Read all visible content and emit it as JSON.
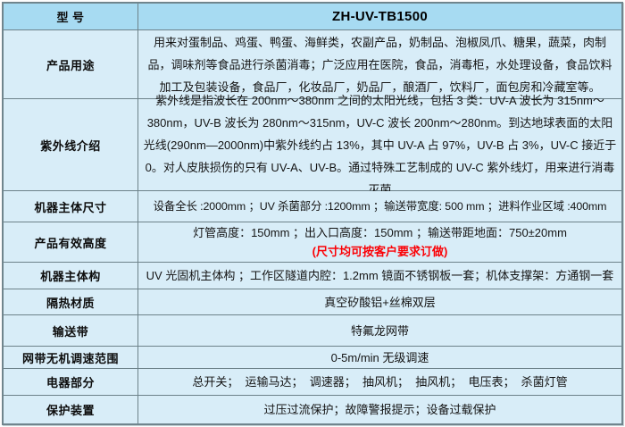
{
  "colors": {
    "header_bg": "#a7dbf2",
    "body_bg": "#d8edf8",
    "border": "#6d828a",
    "note_red": "#fb0005",
    "text": "#141414"
  },
  "table": {
    "model_label": "型 号",
    "model_value": "ZH-UV-TB1500",
    "rows": [
      {
        "label": "产品用途",
        "value": "用来对蛋制品、鸡蛋、鸭蛋、海鲜类，农副产品，奶制品、泡椒凤爪、糖果，蔬菜，肉制品，调味剂等食品进行杀菌消毒；广泛应用在医院，食品，消毒柜，水处理设备，食品饮料加工及包装设备，食品厂，化妆品厂，奶品厂，酿酒厂，饮料厂，面包房和冷藏室等。"
      },
      {
        "label": "紫外线介绍",
        "value": "紫外线是指波长在 200nm～380nm 之间的太阳光线，包括 3 类：UV-A 波长为 315nm～380nm，UV-B 波长为 280nm～315nm，UV-C 波长 200nm～280nm。到达地球表面的太阳光线(290nm—2000nm)中紫外线约占 13%，其中 UV-A 占 97%，UV-B 占 3%，UV-C 接近于 0。对人皮肤损伤的只有 UV-A、UV-B。通过特殊工艺制成的 UV-C 紫外线灯，用来进行消毒灭菌"
      },
      {
        "label": "机器主体尺寸",
        "value": "设备全长 :2000mm ；UV 杀菌部分 :1200mm ；输送带宽度: 500 mm ；进料作业区域 :400mm"
      },
      {
        "label": "产品有效高度",
        "value": "灯管高度：150mm ；出入口高度：150mm ；输送带距地面：750±20mm",
        "note": "(尺寸均可按客户要求订做)"
      },
      {
        "label": "机器主体构",
        "value": "UV 光固机主体构 ；工作区隧道内腔：1.2mm 镜面不锈钢板一套；机体支撑架：方通钢一套"
      },
      {
        "label": "隔热材质",
        "value": "真空矽酸铝+丝棉双层"
      },
      {
        "label": "输送带",
        "value": "特氟龙网带"
      },
      {
        "label": "网带无机调速范围",
        "value": "0-5m/min 无级调速"
      },
      {
        "label": "电器部分",
        "value": "总开关；  运输马达；  调速器；  抽风机；  抽风机；  电压表；  杀菌灯管"
      },
      {
        "label": "保护装置",
        "value": "过压过流保护；故障警报提示；设备过载保护"
      }
    ]
  }
}
